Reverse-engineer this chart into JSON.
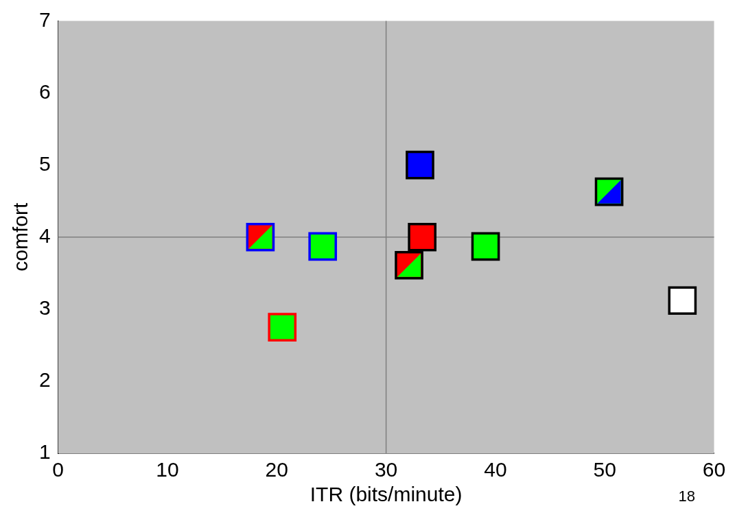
{
  "chart_data": {
    "type": "scatter",
    "xlabel": "ITR (bits/minute)",
    "ylabel": "comfort",
    "xlim": [
      0,
      60
    ],
    "xticks": [
      0,
      10,
      20,
      30,
      40,
      50,
      60
    ],
    "ylim": [
      1,
      7
    ],
    "yticks": [
      1,
      2,
      3,
      4,
      5,
      6,
      7
    ],
    "grid": false,
    "legend": false,
    "marker": "square",
    "series": [
      {
        "color": "#0000ff",
        "x": [
          18.5,
          24.2
        ],
        "values": [
          4.0,
          3.87
        ],
        "colors": [
          [
            "#ff0000",
            "#00ff00"
          ],
          "#00ff00"
        ]
      },
      {
        "color": "#ff0000",
        "x": [
          20.5
        ],
        "values": [
          2.75
        ],
        "colors": [
          "#00ff00"
        ]
      },
      {
        "color": "#000000",
        "x": [
          33.1,
          33.3,
          32.1,
          39.1,
          50.4,
          57.1
        ],
        "values": [
          5.0,
          4.0,
          3.61,
          3.87,
          4.63,
          3.12
        ],
        "colors": [
          "#0000ff",
          "#ff0000",
          [
            "#ff0000",
            "#00ff00"
          ],
          "#00ff00",
          [
            "#00ff00",
            "#0000ff"
          ],
          "#ffffff"
        ]
      }
    ],
    "ref_lines": [
      {
        "axis": "x",
        "value": 30,
        "color": "#7f7f7f"
      },
      {
        "axis": "y",
        "value": 4,
        "color": "#7f7f7f"
      }
    ],
    "annotations": [
      "18"
    ]
  }
}
